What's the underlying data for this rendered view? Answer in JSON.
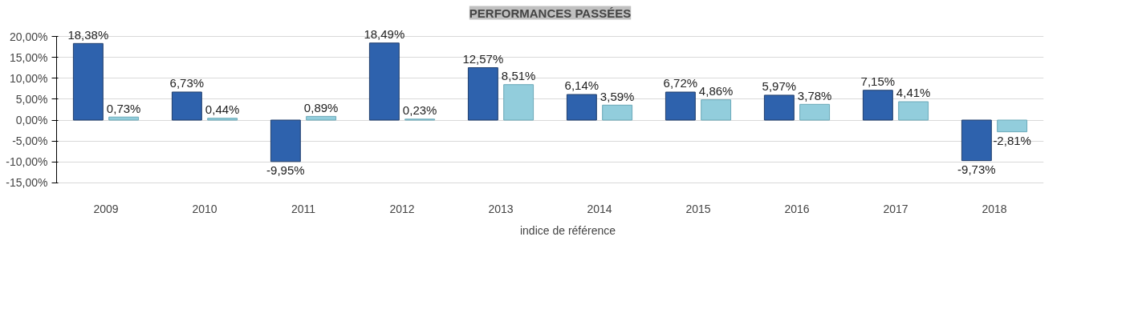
{
  "chart_data": {
    "type": "bar",
    "title": "PERFORMANCES PASSÉES",
    "categories": [
      "2009",
      "2010",
      "2011",
      "2012",
      "2013",
      "2014",
      "2015",
      "2016",
      "2017",
      "2018"
    ],
    "series": [
      {
        "color": "#2e62ad",
        "values": [
          18.38,
          6.73,
          -9.95,
          18.49,
          12.57,
          6.14,
          6.72,
          5.97,
          7.15,
          -9.73
        ],
        "value_labels": [
          "18,38%",
          "6,73%",
          "-9,95%",
          "18,49%",
          "12,57%",
          "6,14%",
          "6,72%",
          "5,97%",
          "7,15%",
          "-9,73%"
        ]
      },
      {
        "name": "indice de référence",
        "color": "#92cddc",
        "values": [
          0.73,
          0.44,
          0.89,
          0.23,
          8.51,
          3.59,
          4.86,
          3.78,
          4.41,
          -2.81
        ],
        "value_labels": [
          "0,73%",
          "0,44%",
          "0,89%",
          "0,23%",
          "8,51%",
          "3,59%",
          "4,86%",
          "3,78%",
          "4,41%",
          "-2,81%"
        ]
      }
    ],
    "ylim": [
      -15,
      20
    ],
    "yticks": [
      {
        "value": -15,
        "label": "-15,00%"
      },
      {
        "value": -10,
        "label": "-10,00%"
      },
      {
        "value": -5,
        "label": "-5,00%"
      },
      {
        "value": 0,
        "label": "0,00%"
      },
      {
        "value": 5,
        "label": "5,00%"
      },
      {
        "value": 10,
        "label": "10,00%"
      },
      {
        "value": 15,
        "label": "15,00%"
      },
      {
        "value": 20,
        "label": "20,00%"
      }
    ],
    "grid": "y",
    "legend": "bottom"
  }
}
